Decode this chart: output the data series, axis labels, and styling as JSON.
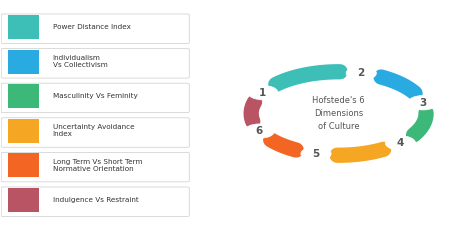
{
  "legend_items": [
    {
      "color": "#3DBFB8",
      "label": "Power Distance Index"
    },
    {
      "color": "#29ABE2",
      "label": "Individualism\nVs Collectivism"
    },
    {
      "color": "#3CB878",
      "label": "Masculinity Vs Feminity"
    },
    {
      "color": "#F5A623",
      "label": "Uncertainty Avoidance\nIndex"
    },
    {
      "color": "#F26522",
      "label": "Long Term Vs Short Term\nNormative Orientation"
    },
    {
      "color": "#B85464",
      "label": "Indulgence Vs Restraint"
    }
  ],
  "center_text": "Hofstede's 6\nDimensions\nof Culture",
  "arrow_colors": [
    "#3DBFB8",
    "#29ABE2",
    "#3CB878",
    "#F5A623",
    "#F26522",
    "#B85464"
  ],
  "numbers": [
    "1",
    "2",
    "3",
    "4",
    "5",
    "6"
  ],
  "num_angles_deg": [
    150,
    75,
    15,
    -45,
    -105,
    -155
  ],
  "bg_color": "#FFFFFF"
}
